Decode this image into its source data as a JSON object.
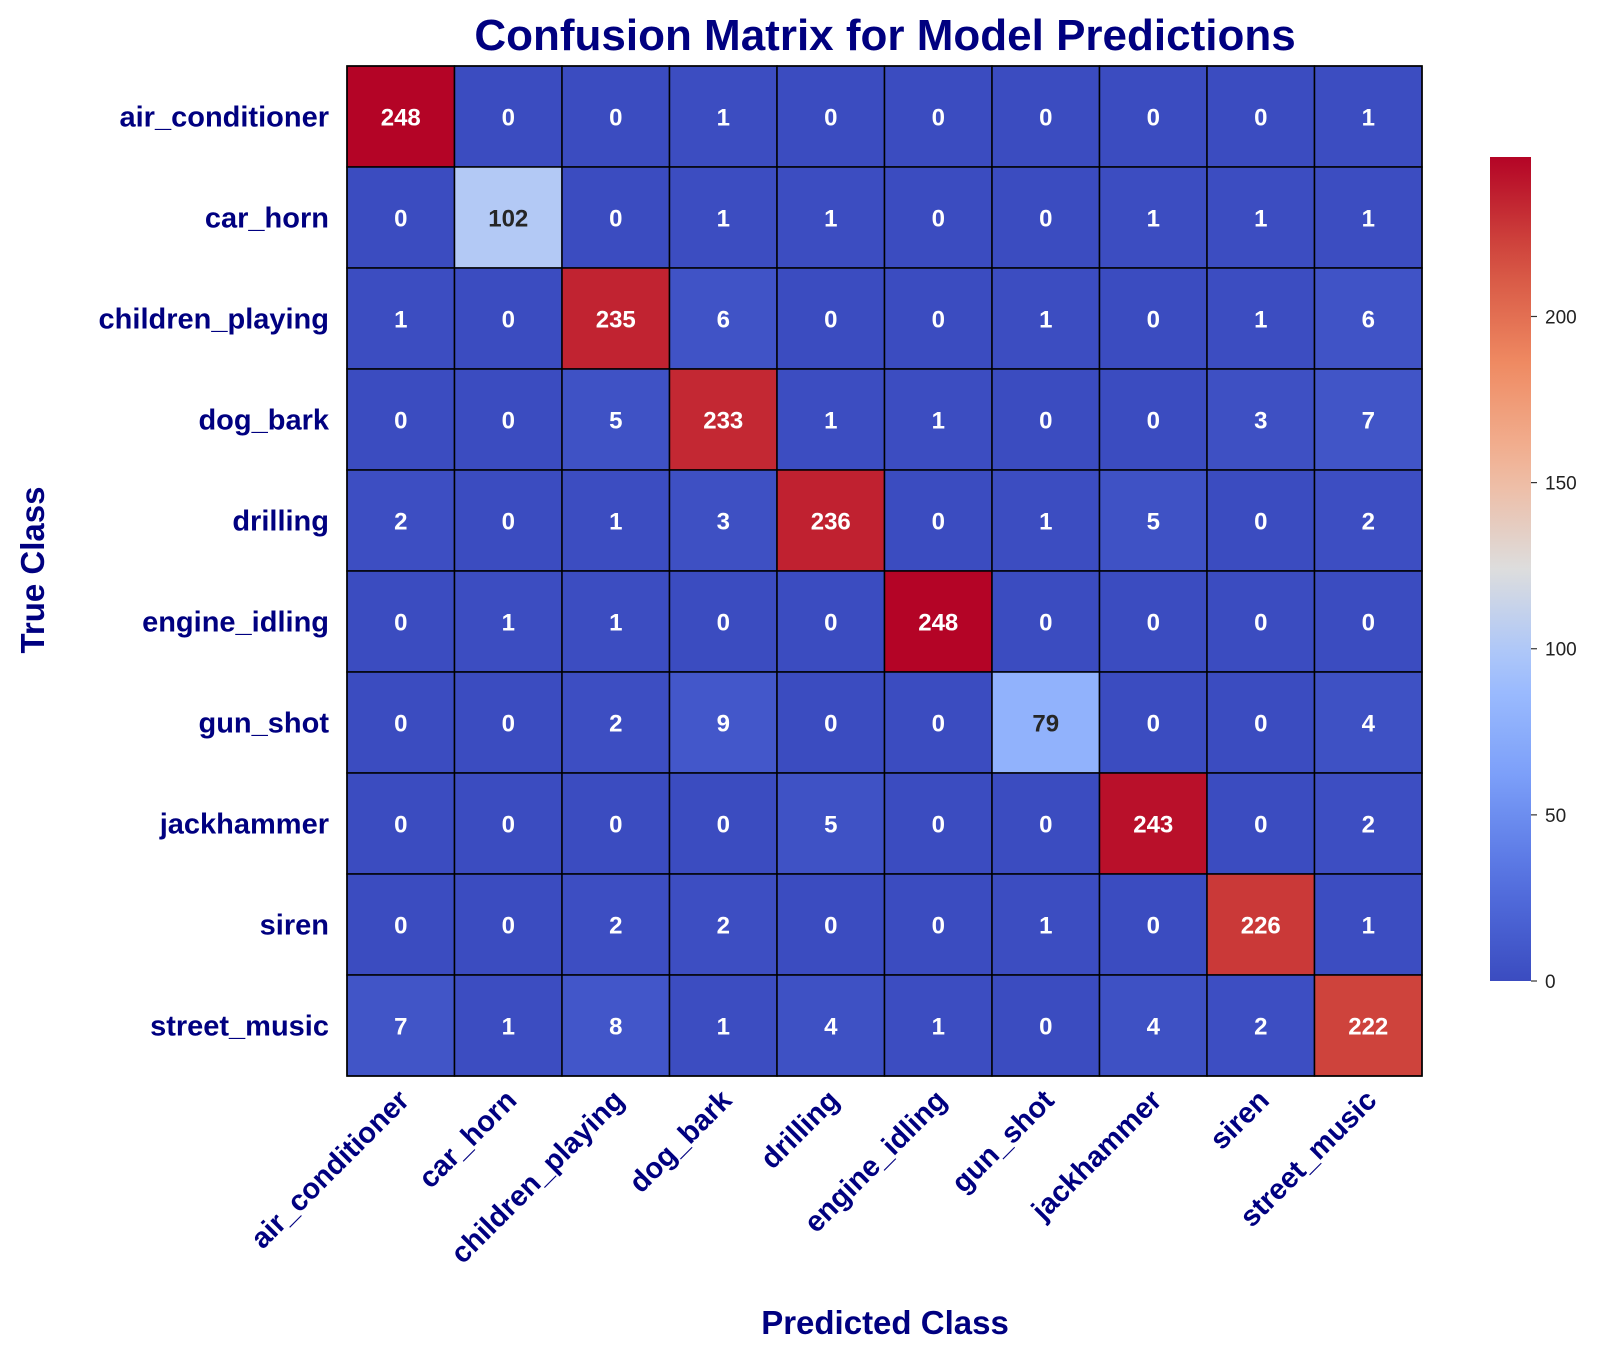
{
  "chart_data": {
    "type": "heatmap",
    "title": "Confusion Matrix for Model Predictions",
    "xlabel": "Predicted Class",
    "ylabel": "True Class",
    "x_categories": [
      "air_conditioner",
      "car_horn",
      "children_playing",
      "dog_bark",
      "drilling",
      "engine_idling",
      "gun_shot",
      "jackhammer",
      "siren",
      "street_music"
    ],
    "y_categories": [
      "air_conditioner",
      "car_horn",
      "children_playing",
      "dog_bark",
      "drilling",
      "engine_idling",
      "gun_shot",
      "jackhammer",
      "siren",
      "street_music"
    ],
    "values": [
      [
        248,
        0,
        0,
        1,
        0,
        0,
        0,
        0,
        0,
        1
      ],
      [
        0,
        102,
        0,
        1,
        1,
        0,
        0,
        1,
        1,
        1
      ],
      [
        1,
        0,
        235,
        6,
        0,
        0,
        1,
        0,
        1,
        6
      ],
      [
        0,
        0,
        5,
        233,
        1,
        1,
        0,
        0,
        3,
        7
      ],
      [
        2,
        0,
        1,
        3,
        236,
        0,
        1,
        5,
        0,
        2
      ],
      [
        0,
        1,
        1,
        0,
        0,
        248,
        0,
        0,
        0,
        0
      ],
      [
        0,
        0,
        2,
        9,
        0,
        0,
        79,
        0,
        0,
        4
      ],
      [
        0,
        0,
        0,
        0,
        5,
        0,
        0,
        243,
        0,
        2
      ],
      [
        0,
        0,
        2,
        2,
        0,
        0,
        1,
        0,
        226,
        1
      ],
      [
        7,
        1,
        8,
        1,
        4,
        1,
        0,
        4,
        2,
        222
      ]
    ],
    "colormap": "coolwarm",
    "colorbar": {
      "range": [
        0,
        248
      ],
      "ticks": [
        0,
        50,
        100,
        150,
        200
      ]
    },
    "text_color": "#000080",
    "grid": false
  }
}
